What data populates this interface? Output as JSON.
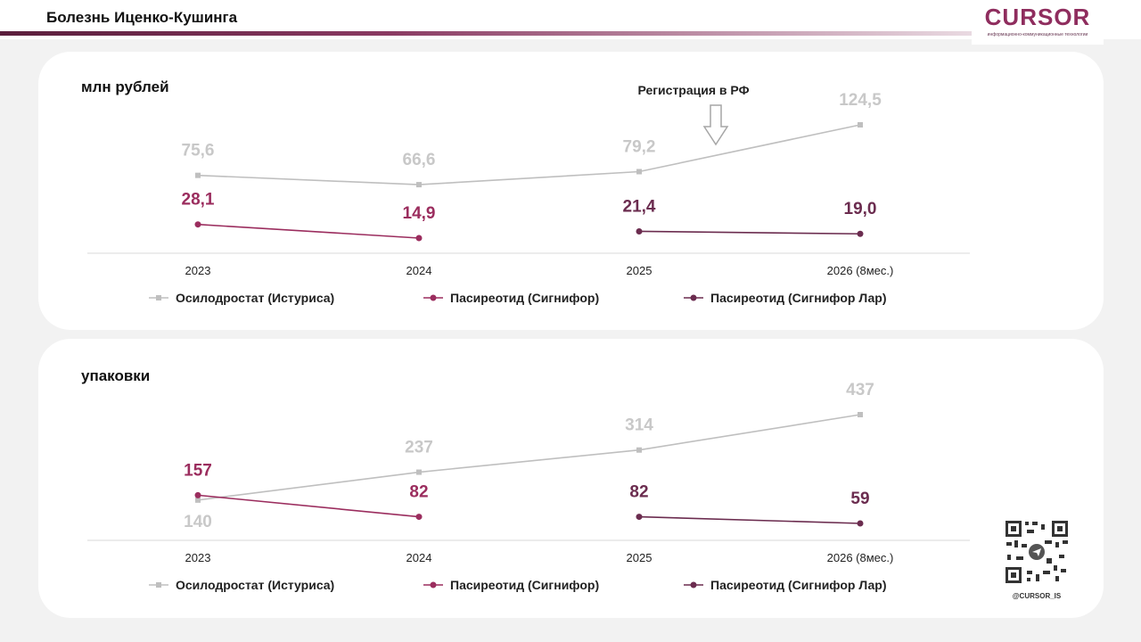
{
  "header": {
    "title": "Болезнь Иценко-Кушинга",
    "logo_text": "CURSOR",
    "logo_subtitle": "информационно-коммуникационные технологии"
  },
  "footer": {
    "handle": "@CURSOR_IS"
  },
  "colors": {
    "osilodrostat": "#bfbfbf",
    "signifor": "#9b2d5e",
    "signifor_lar": "#6b2c4f",
    "osilodrostat_label": "#c8c8c8"
  },
  "legend": {
    "osilodrostat": "Осилодростат (Истуриса)",
    "signifor": "Пасиреотид (Сигнифор)",
    "signifor_lar": "Пасиреотид (Сигнифор Лар)"
  },
  "chart_data": [
    {
      "type": "line",
      "unit_label": "млн рублей",
      "annotation": "Регистрация в РФ",
      "categories": [
        "2023",
        "2024",
        "2025",
        "2026 (8мес.)"
      ],
      "series": [
        {
          "name": "Осилодростат (Истуриса)",
          "values": [
            75.6,
            66.6,
            79.2,
            124.5
          ],
          "labels": [
            "75,6",
            "66,6",
            "79,2",
            "124,5"
          ]
        },
        {
          "name": "Пасиреотид (Сигнифор)",
          "values": [
            28.1,
            14.9,
            null,
            null
          ],
          "labels": [
            "28,1",
            "14,9",
            "",
            ""
          ]
        },
        {
          "name": "Пасиреотид (Сигнифор Лар)",
          "values": [
            null,
            null,
            21.4,
            19.0
          ],
          "labels": [
            "",
            "",
            "21,4",
            "19,0"
          ]
        }
      ],
      "legend_position": "bottom",
      "grid": false
    },
    {
      "type": "line",
      "unit_label": "упаковки",
      "categories": [
        "2023",
        "2024",
        "2025",
        "2026 (8мес.)"
      ],
      "series": [
        {
          "name": "Осилодростат (Истуриса)",
          "values": [
            140,
            237,
            314,
            437
          ],
          "labels": [
            "140",
            "237",
            "314",
            "437"
          ]
        },
        {
          "name": "Пасиреотид (Сигнифор)",
          "values": [
            157,
            82,
            null,
            null
          ],
          "labels": [
            "157",
            "82",
            "",
            ""
          ]
        },
        {
          "name": "Пасиреотид (Сигнифор Лар)",
          "values": [
            null,
            null,
            82,
            59
          ],
          "labels": [
            "",
            "",
            "82",
            "59"
          ]
        }
      ],
      "legend_position": "bottom",
      "grid": false
    }
  ]
}
